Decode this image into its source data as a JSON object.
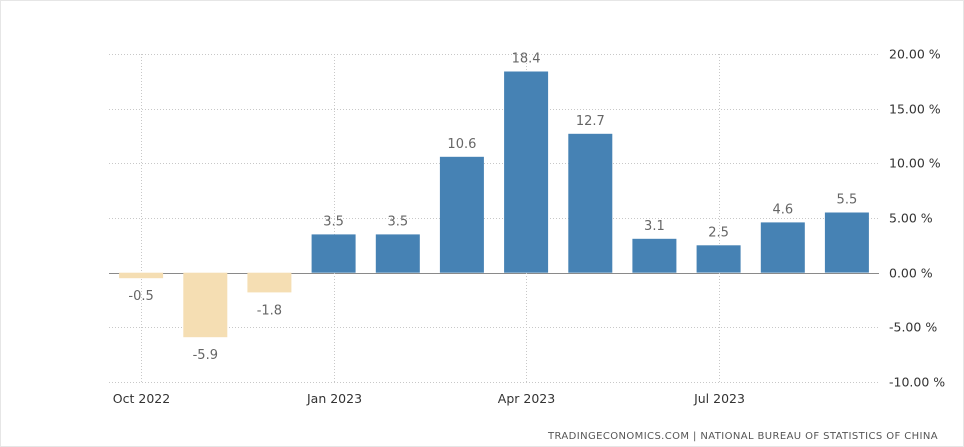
{
  "chart_data": {
    "type": "bar",
    "title": "",
    "xlabel": "",
    "ylabel": "",
    "categories": [
      "Oct 2022",
      "Nov 2022",
      "Dec 2022",
      "Jan 2023",
      "Feb 2023",
      "Mar 2023",
      "Apr 2023",
      "May 2023",
      "Jun 2023",
      "Jul 2023",
      "Aug 2023",
      "Sep 2023"
    ],
    "values": [
      -0.5,
      -5.9,
      -1.8,
      3.5,
      3.5,
      10.6,
      18.4,
      12.7,
      3.1,
      2.5,
      4.6,
      5.5
    ],
    "data_labels": [
      "-0.5",
      "-5.9",
      "-1.8",
      "3.5",
      "3.5",
      "10.6",
      "18.4",
      "12.7",
      "3.1",
      "2.5",
      "4.6",
      "5.5"
    ],
    "x_tick_labels": [
      {
        "category": "Oct 2022",
        "label": "Oct 2022"
      },
      {
        "category": "Jan 2023",
        "label": "Jan 2023"
      },
      {
        "category": "Apr 2023",
        "label": "Apr 2023"
      },
      {
        "category": "Jul 2023",
        "label": "Jul 2023"
      }
    ],
    "y_ticks": [
      20,
      15,
      10,
      5,
      0,
      -5,
      -10
    ],
    "y_tick_labels": [
      "20.00 %",
      "15.00 %",
      "10.00 %",
      "5.00 %",
      "0.00 %",
      "-5.00 %",
      "-10.00 %"
    ],
    "ylim": [
      -10,
      20
    ],
    "y_axis_position": "right",
    "grid": true,
    "colors": {
      "positive": "#4682b4",
      "negative": "#f5deb3"
    }
  },
  "source": "TRADINGECONOMICS.COM | NATIONAL BUREAU OF STATISTICS OF CHINA"
}
